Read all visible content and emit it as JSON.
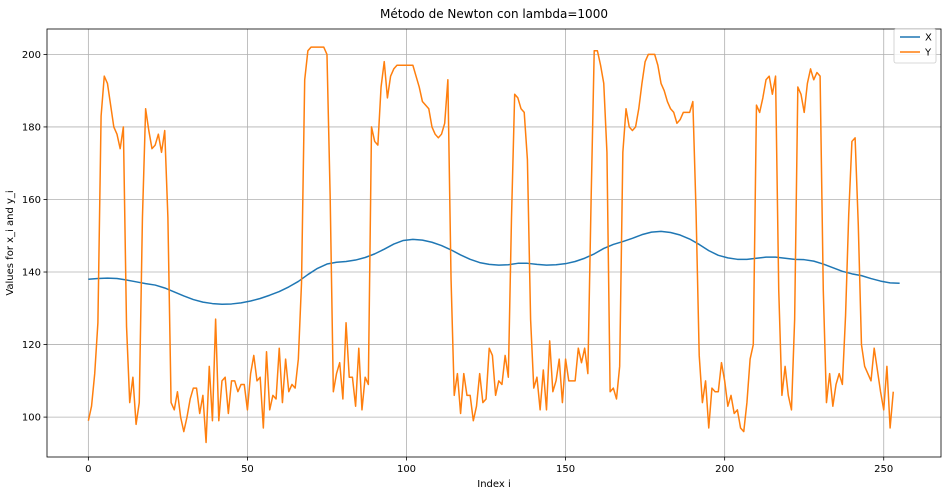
{
  "chart_data": {
    "type": "line",
    "title": "Método de Newton con lambda=1000",
    "xlabel": "Index i",
    "ylabel": "Values for x_i and y_i",
    "xlim": [
      -13,
      268
    ],
    "ylim": [
      89,
      207
    ],
    "xticks": [
      0,
      50,
      100,
      150,
      200,
      250
    ],
    "yticks": [
      100,
      120,
      140,
      160,
      180,
      200
    ],
    "grid": true,
    "legend_position": "top-right",
    "series": [
      {
        "name": "X",
        "color": "#1f77b4",
        "points": [
          [
            0,
            138
          ],
          [
            3,
            138.2
          ],
          [
            6,
            138.3
          ],
          [
            9,
            138.2
          ],
          [
            12,
            137.8
          ],
          [
            15,
            137.3
          ],
          [
            18,
            136.8
          ],
          [
            21,
            136.4
          ],
          [
            24,
            135.6
          ],
          [
            27,
            134.5
          ],
          [
            30,
            133.4
          ],
          [
            33,
            132.4
          ],
          [
            36,
            131.7
          ],
          [
            39,
            131.3
          ],
          [
            42,
            131.1
          ],
          [
            45,
            131.2
          ],
          [
            48,
            131.5
          ],
          [
            51,
            132
          ],
          [
            54,
            132.7
          ],
          [
            57,
            133.6
          ],
          [
            60,
            134.6
          ],
          [
            63,
            135.9
          ],
          [
            66,
            137.4
          ],
          [
            69,
            139.3
          ],
          [
            72,
            141
          ],
          [
            75,
            142.2
          ],
          [
            78,
            142.7
          ],
          [
            81,
            142.9
          ],
          [
            84,
            143.3
          ],
          [
            87,
            144
          ],
          [
            90,
            145
          ],
          [
            93,
            146.3
          ],
          [
            96,
            147.7
          ],
          [
            99,
            148.7
          ],
          [
            102,
            149
          ],
          [
            105,
            148.8
          ],
          [
            108,
            148.2
          ],
          [
            111,
            147.3
          ],
          [
            114,
            146.1
          ],
          [
            117,
            144.7
          ],
          [
            120,
            143.5
          ],
          [
            123,
            142.6
          ],
          [
            126,
            142.1
          ],
          [
            129,
            141.9
          ],
          [
            132,
            142
          ],
          [
            135,
            142.4
          ],
          [
            138,
            142.4
          ],
          [
            141,
            142.1
          ],
          [
            144,
            141.9
          ],
          [
            147,
            142
          ],
          [
            150,
            142.3
          ],
          [
            153,
            142.9
          ],
          [
            156,
            143.8
          ],
          [
            159,
            145
          ],
          [
            162,
            146.5
          ],
          [
            165,
            147.6
          ],
          [
            168,
            148.4
          ],
          [
            171,
            149.3
          ],
          [
            174,
            150.3
          ],
          [
            177,
            151
          ],
          [
            180,
            151.2
          ],
          [
            183,
            150.9
          ],
          [
            186,
            150.2
          ],
          [
            189,
            149.1
          ],
          [
            192,
            147.6
          ],
          [
            195,
            145.9
          ],
          [
            198,
            144.6
          ],
          [
            201,
            143.9
          ],
          [
            204,
            143.5
          ],
          [
            207,
            143.5
          ],
          [
            210,
            143.8
          ],
          [
            213,
            144.1
          ],
          [
            216,
            144.1
          ],
          [
            219,
            143.8
          ],
          [
            222,
            143.5
          ],
          [
            225,
            143.4
          ],
          [
            228,
            143
          ],
          [
            231,
            142.2
          ],
          [
            234,
            141.2
          ],
          [
            237,
            140.2
          ],
          [
            240,
            139.5
          ],
          [
            243,
            139
          ],
          [
            246,
            138.2
          ],
          [
            249,
            137.5
          ],
          [
            252,
            137
          ],
          [
            255,
            136.9
          ]
        ]
      },
      {
        "name": "Y",
        "color": "#ff7f0e",
        "points": [
          [
            0,
            99
          ],
          [
            1,
            103
          ],
          [
            2,
            112
          ],
          [
            3,
            126
          ],
          [
            4,
            183
          ],
          [
            5,
            194
          ],
          [
            6,
            192
          ],
          [
            7,
            186
          ],
          [
            8,
            180
          ],
          [
            9,
            178
          ],
          [
            10,
            174
          ],
          [
            11,
            180
          ],
          [
            12,
            125
          ],
          [
            13,
            104
          ],
          [
            14,
            111
          ],
          [
            15,
            98
          ],
          [
            16,
            104
          ],
          [
            17,
            155
          ],
          [
            18,
            185
          ],
          [
            19,
            179
          ],
          [
            20,
            174
          ],
          [
            21,
            175
          ],
          [
            22,
            178
          ],
          [
            23,
            173
          ],
          [
            24,
            179
          ],
          [
            25,
            155
          ],
          [
            26,
            104
          ],
          [
            27,
            102
          ],
          [
            28,
            107
          ],
          [
            29,
            100
          ],
          [
            30,
            96
          ],
          [
            31,
            100
          ],
          [
            32,
            105
          ],
          [
            33,
            108
          ],
          [
            34,
            108
          ],
          [
            35,
            101
          ],
          [
            36,
            106
          ],
          [
            37,
            93
          ],
          [
            38,
            114
          ],
          [
            39,
            99
          ],
          [
            40,
            127
          ],
          [
            41,
            99
          ],
          [
            42,
            110
          ],
          [
            43,
            111
          ],
          [
            44,
            101
          ],
          [
            45,
            110
          ],
          [
            46,
            110
          ],
          [
            47,
            107
          ],
          [
            48,
            109
          ],
          [
            49,
            109
          ],
          [
            50,
            102
          ],
          [
            51,
            112
          ],
          [
            52,
            117
          ],
          [
            53,
            110
          ],
          [
            54,
            111
          ],
          [
            55,
            97
          ],
          [
            56,
            118
          ],
          [
            57,
            102
          ],
          [
            58,
            106
          ],
          [
            59,
            105
          ],
          [
            60,
            119
          ],
          [
            61,
            104
          ],
          [
            62,
            116
          ],
          [
            63,
            107
          ],
          [
            64,
            109
          ],
          [
            65,
            108
          ],
          [
            66,
            116
          ],
          [
            67,
            137
          ],
          [
            68,
            193
          ],
          [
            69,
            201
          ],
          [
            70,
            202
          ],
          [
            73,
            202
          ],
          [
            74,
            202
          ],
          [
            75,
            200
          ],
          [
            76,
            161
          ],
          [
            77,
            107
          ],
          [
            78,
            112
          ],
          [
            79,
            115
          ],
          [
            80,
            105
          ],
          [
            81,
            126
          ],
          [
            82,
            111
          ],
          [
            83,
            111
          ],
          [
            84,
            103
          ],
          [
            85,
            119
          ],
          [
            86,
            102
          ],
          [
            87,
            111
          ],
          [
            88,
            109
          ],
          [
            89,
            180
          ],
          [
            90,
            176
          ],
          [
            91,
            175
          ],
          [
            92,
            191
          ],
          [
            93,
            198
          ],
          [
            94,
            188
          ],
          [
            95,
            194
          ],
          [
            96,
            196
          ],
          [
            97,
            197
          ],
          [
            102,
            197
          ],
          [
            103,
            194
          ],
          [
            104,
            191
          ],
          [
            105,
            187
          ],
          [
            106,
            186
          ],
          [
            107,
            185
          ],
          [
            108,
            180
          ],
          [
            109,
            178
          ],
          [
            110,
            177
          ],
          [
            111,
            178
          ],
          [
            112,
            181
          ],
          [
            113,
            193
          ],
          [
            114,
            138
          ],
          [
            115,
            106
          ],
          [
            116,
            112
          ],
          [
            117,
            101
          ],
          [
            118,
            112
          ],
          [
            119,
            106
          ],
          [
            120,
            106
          ],
          [
            121,
            99
          ],
          [
            122,
            103
          ],
          [
            123,
            112
          ],
          [
            124,
            104
          ],
          [
            125,
            105
          ],
          [
            126,
            119
          ],
          [
            127,
            117
          ],
          [
            128,
            106
          ],
          [
            129,
            110
          ],
          [
            130,
            109
          ],
          [
            131,
            117
          ],
          [
            132,
            111
          ],
          [
            133,
            155
          ],
          [
            134,
            189
          ],
          [
            135,
            188
          ],
          [
            136,
            185
          ],
          [
            137,
            184
          ],
          [
            138,
            171
          ],
          [
            139,
            127
          ],
          [
            140,
            108
          ],
          [
            141,
            111
          ],
          [
            142,
            102
          ],
          [
            143,
            113
          ],
          [
            144,
            102
          ],
          [
            145,
            121
          ],
          [
            146,
            107
          ],
          [
            147,
            110
          ],
          [
            148,
            116
          ],
          [
            149,
            104
          ],
          [
            150,
            116
          ],
          [
            151,
            110
          ],
          [
            152,
            110
          ],
          [
            153,
            110
          ],
          [
            154,
            119
          ],
          [
            155,
            115
          ],
          [
            156,
            119
          ],
          [
            157,
            112
          ],
          [
            158,
            159
          ],
          [
            159,
            201
          ],
          [
            160,
            201
          ],
          [
            161,
            197
          ],
          [
            162,
            192
          ],
          [
            163,
            173
          ],
          [
            164,
            107
          ],
          [
            165,
            108
          ],
          [
            166,
            105
          ],
          [
            167,
            114
          ],
          [
            168,
            173
          ],
          [
            169,
            185
          ],
          [
            170,
            180
          ],
          [
            171,
            179
          ],
          [
            172,
            180
          ],
          [
            173,
            185
          ],
          [
            174,
            192
          ],
          [
            175,
            198
          ],
          [
            176,
            200
          ],
          [
            178,
            200
          ],
          [
            179,
            197
          ],
          [
            180,
            192
          ],
          [
            181,
            190
          ],
          [
            182,
            187
          ],
          [
            183,
            185
          ],
          [
            184,
            184
          ],
          [
            185,
            181
          ],
          [
            186,
            182
          ],
          [
            187,
            184
          ],
          [
            189,
            184
          ],
          [
            190,
            187
          ],
          [
            191,
            157
          ],
          [
            192,
            117
          ],
          [
            193,
            104
          ],
          [
            194,
            110
          ],
          [
            195,
            97
          ],
          [
            196,
            108
          ],
          [
            197,
            107
          ],
          [
            198,
            107
          ],
          [
            199,
            115
          ],
          [
            200,
            110
          ],
          [
            201,
            103
          ],
          [
            202,
            106
          ],
          [
            203,
            101
          ],
          [
            204,
            102
          ],
          [
            205,
            97
          ],
          [
            206,
            96
          ],
          [
            207,
            104
          ],
          [
            208,
            116
          ],
          [
            209,
            120
          ],
          [
            210,
            186
          ],
          [
            211,
            184
          ],
          [
            212,
            188
          ],
          [
            213,
            193
          ],
          [
            214,
            194
          ],
          [
            215,
            189
          ],
          [
            216,
            194
          ],
          [
            217,
            135
          ],
          [
            218,
            106
          ],
          [
            219,
            114
          ],
          [
            220,
            106
          ],
          [
            221,
            102
          ],
          [
            222,
            127
          ],
          [
            223,
            191
          ],
          [
            224,
            189
          ],
          [
            225,
            184
          ],
          [
            226,
            192
          ],
          [
            227,
            196
          ],
          [
            228,
            193
          ],
          [
            229,
            195
          ],
          [
            230,
            194
          ],
          [
            231,
            135
          ],
          [
            232,
            104
          ],
          [
            233,
            112
          ],
          [
            234,
            103
          ],
          [
            235,
            109
          ],
          [
            236,
            112
          ],
          [
            237,
            109
          ],
          [
            238,
            128
          ],
          [
            239,
            156
          ],
          [
            240,
            176
          ],
          [
            241,
            177
          ],
          [
            242,
            153
          ],
          [
            243,
            120
          ],
          [
            244,
            114
          ],
          [
            245,
            112
          ],
          [
            246,
            110
          ],
          [
            247,
            119
          ],
          [
            248,
            113
          ],
          [
            249,
            107
          ],
          [
            250,
            102
          ],
          [
            251,
            114
          ],
          [
            252,
            97
          ],
          [
            253,
            107
          ]
        ]
      }
    ]
  }
}
